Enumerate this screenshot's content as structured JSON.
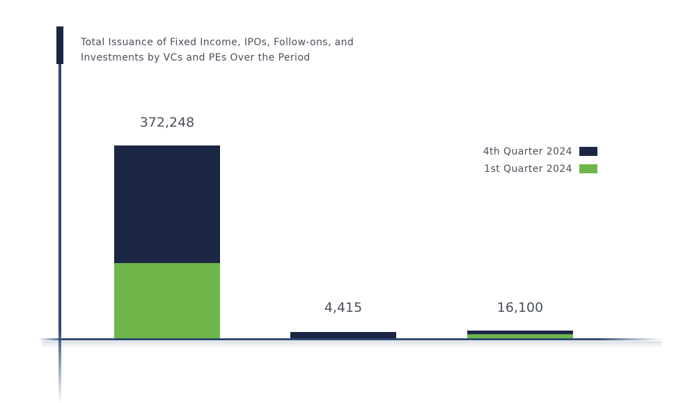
{
  "title": "Total Issuance of Fixed Income, IPOs, Follow-ons, and Investments by VCs and PEs Over the Period",
  "colors": {
    "q4": "#1a2644",
    "q1": "#6eb64a",
    "axis": "#2d4a73"
  },
  "legend": [
    {
      "label": "4th Quarter 2024",
      "series": "q4"
    },
    {
      "label": "1st Quarter 2024",
      "series": "q1"
    }
  ],
  "chart_data": {
    "type": "bar",
    "stacked": true,
    "title": "Total Issuance of Fixed Income, IPOs, Follow-ons, and Investments by VCs and PEs Over the Period",
    "categories": [
      "",
      "",
      ""
    ],
    "series": [
      {
        "name": "1st Quarter 2024",
        "key": "q1",
        "values": [
          146000,
          0,
          9000
        ]
      },
      {
        "name": "4th Quarter 2024",
        "key": "q4",
        "values": [
          226248,
          4415,
          7100
        ]
      }
    ],
    "totals": [
      372248,
      4415,
      16100
    ],
    "total_labels": [
      "372,248",
      "4,415",
      "16,100"
    ],
    "ylim": [
      0,
      400000
    ],
    "xlabel": "",
    "ylabel": "",
    "legend_position": "top-right"
  }
}
